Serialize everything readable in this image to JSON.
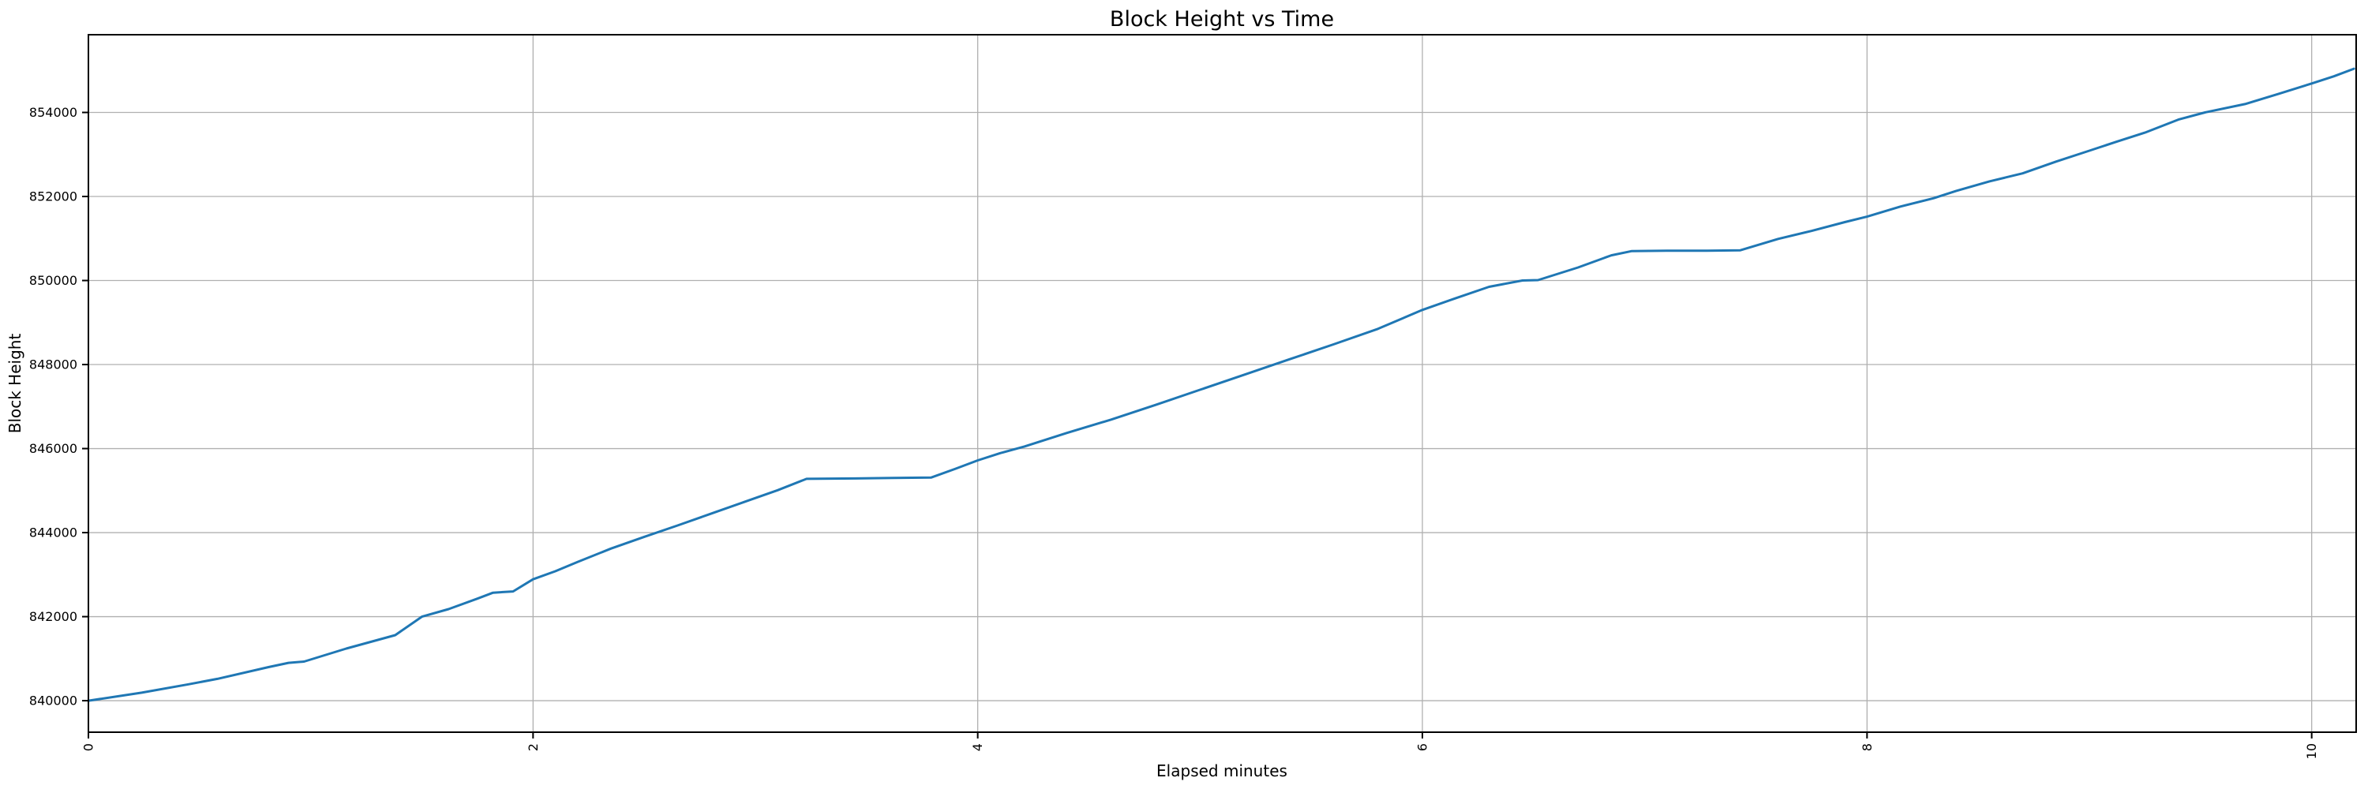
{
  "figure": {
    "background": "#ffffff",
    "plot_background": "#ffffff",
    "spine_color": "#000000"
  },
  "chart_data": {
    "type": "line",
    "title": "Block Height vs Time",
    "xlabel": "Elapsed minutes",
    "ylabel": "Block Height",
    "legend": "none",
    "grid": true,
    "grid_color": "#b0b0b0",
    "line_color": "#1f77b4",
    "line_width": 3,
    "xlim": [
      0,
      10.2
    ],
    "ylim": [
      839250,
      855850
    ],
    "xticks": [
      0,
      2,
      4,
      6,
      8,
      10
    ],
    "xtick_labels": [
      "0",
      "2",
      "4",
      "6",
      "8",
      "10"
    ],
    "xtick_rotation": 90,
    "yticks": [
      840000,
      842000,
      844000,
      846000,
      848000,
      850000,
      852000,
      854000
    ],
    "ytick_labels": [
      "840000",
      "842000",
      "844000",
      "846000",
      "848000",
      "850000",
      "852000",
      "854000"
    ],
    "x": [
      0,
      0.24,
      0.45,
      0.58,
      0.81,
      0.9,
      0.97,
      1.16,
      1.38,
      1.5,
      1.62,
      1.75,
      1.82,
      1.91,
      2.0,
      2.1,
      2.2,
      2.35,
      2.5,
      2.65,
      2.8,
      2.95,
      3.1,
      3.23,
      3.45,
      3.62,
      3.79,
      3.9,
      4.0,
      4.1,
      4.21,
      4.4,
      4.6,
      4.8,
      5.0,
      5.2,
      5.4,
      5.6,
      5.8,
      6.0,
      6.15,
      6.3,
      6.45,
      6.52,
      6.7,
      6.85,
      6.94,
      7.1,
      7.28,
      7.43,
      7.6,
      7.75,
      7.9,
      8.0,
      8.15,
      8.3,
      8.4,
      8.55,
      8.7,
      8.85,
      9.0,
      9.12,
      9.25,
      9.4,
      9.52,
      9.7,
      9.85,
      10.0,
      10.1,
      10.19
    ],
    "series": [
      {
        "name": "block-height",
        "values": [
          840000,
          840190,
          840390,
          840520,
          840800,
          840900,
          840930,
          841240,
          841560,
          842000,
          842180,
          842430,
          842570,
          842600,
          842890,
          843080,
          843300,
          843620,
          843900,
          844170,
          844450,
          844730,
          845010,
          845280,
          845290,
          845300,
          845310,
          845520,
          845720,
          845890,
          846050,
          846370,
          846690,
          847040,
          847400,
          847760,
          848120,
          848480,
          848850,
          849300,
          849580,
          849850,
          850000,
          850010,
          850310,
          850600,
          850700,
          850710,
          850710,
          850720,
          850990,
          851180,
          851390,
          851520,
          851760,
          851960,
          852130,
          852360,
          852550,
          852830,
          853090,
          853300,
          853520,
          853830,
          854000,
          854200,
          854440,
          854690,
          854860,
          855040
        ]
      }
    ]
  }
}
